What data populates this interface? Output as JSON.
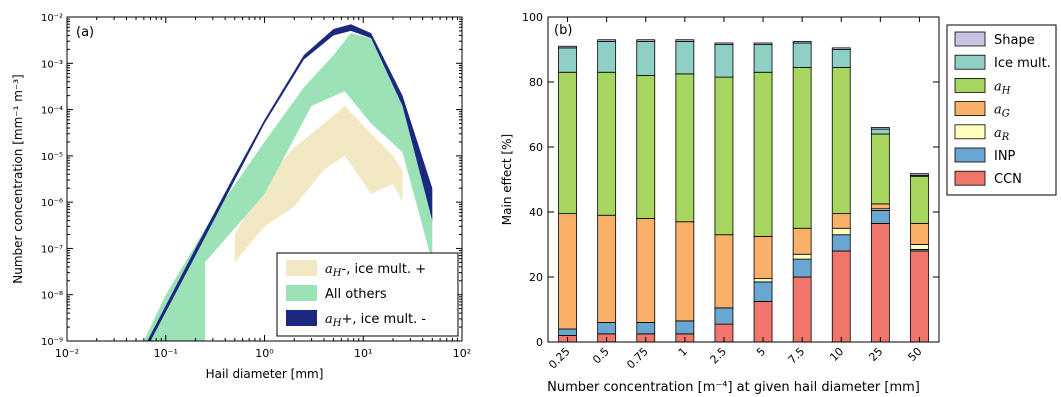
{
  "chart_data": [
    {
      "type": "area",
      "panel_label": "(a)",
      "xlabel": "Hail diameter [mm]",
      "ylabel": "Number concentration [mm⁻¹ m⁻³]",
      "xscale": "log",
      "yscale": "log",
      "xlim": [
        0.01,
        100
      ],
      "ylim": [
        1e-09,
        0.01
      ],
      "xticks": [
        0.01,
        0.1,
        1,
        10,
        100
      ],
      "xtick_labels": [
        "10⁻²",
        "10⁻¹",
        "10⁰",
        "10¹",
        "10²"
      ],
      "yticks": [
        1e-09,
        1e-08,
        1e-07,
        1e-06,
        1e-05,
        0.0001,
        0.001,
        0.01
      ],
      "ytick_labels": [
        "10⁻⁹",
        "10⁻⁸",
        "10⁻⁷",
        "10⁻⁶",
        "10⁻⁵",
        "10⁻⁴",
        "10⁻³",
        "10⁻²"
      ],
      "grid": false,
      "legend_position": "bottom-right",
      "series": [
        {
          "name": "a_H -, ice mult. +",
          "legend_label": "-, ice mult. +",
          "legend_symbol": "a",
          "legend_subscript": "H",
          "color": "#f2e8c4",
          "x_upper": [
            0.5,
            1,
            2,
            4,
            6.5,
            12,
            20,
            25
          ],
          "y_upper": [
            2e-07,
            3e-06,
            1.5e-05,
            5e-05,
            0.00012,
            3e-05,
            1e-05,
            5e-06
          ],
          "x_lower": [
            25,
            20,
            12,
            6.5,
            4,
            2,
            1,
            0.5
          ],
          "y_lower": [
            1e-06,
            2.5e-06,
            1.5e-06,
            1e-05,
            5e-06,
            8e-07,
            3e-07,
            5e-08
          ]
        },
        {
          "name": "All others",
          "legend_label": "All others",
          "color": "#9be3b6",
          "x_upper": [
            0.06,
            0.1,
            0.3,
            1,
            2.5,
            5,
            7.5,
            12,
            25,
            50
          ],
          "y_upper": [
            1e-09,
            1e-08,
            5e-07,
            2e-05,
            0.0003,
            0.0015,
            0.0045,
            0.0035,
            0.00015,
            6e-07
          ],
          "x_lower": [
            50,
            25,
            12,
            6.5,
            3,
            1,
            0.25,
            0.25,
            0.08
          ],
          "y_lower": [
            5e-08,
            1.2e-05,
            5e-05,
            0.00025,
            0.00012,
            1.5e-06,
            5e-08,
            1e-09,
            1e-09
          ]
        },
        {
          "name": "a_H +, ice mult. -",
          "legend_label": "+, ice mult. -",
          "legend_symbol": "a",
          "legend_subscript": "H",
          "color": "#1c2880",
          "x_upper": [
            0.065,
            0.2,
            0.5,
            1,
            2.5,
            5,
            7.5,
            12,
            25,
            50
          ],
          "y_upper": [
            1e-09,
            1e-07,
            4e-06,
            6e-05,
            0.0015,
            0.0055,
            0.007,
            0.0045,
            0.0002,
            2e-06
          ],
          "x_lower": [
            50,
            25,
            12,
            7.5,
            5,
            2.5,
            1,
            0.5,
            0.2,
            0.07
          ],
          "y_lower": [
            4e-07,
            0.00012,
            0.0035,
            0.005,
            0.004,
            0.0012,
            5e-05,
            3e-06,
            7e-08,
            1e-09
          ]
        }
      ]
    },
    {
      "type": "bar",
      "stacked": true,
      "panel_label": "(b)",
      "xlabel": "Number concentration [m⁻⁴] at given hail diameter [mm]",
      "ylabel": "Main effect [%]",
      "ylim": [
        0,
        100
      ],
      "yticks": [
        0,
        20,
        40,
        60,
        80,
        100
      ],
      "grid": false,
      "legend_position": "outside-right",
      "categories": [
        "0.25",
        "0.5",
        "0.75",
        "1",
        "2.5",
        "5",
        "7.5",
        "10",
        "25",
        "50"
      ],
      "series": [
        {
          "name": "CCN",
          "color": "#f0766c",
          "values": [
            2,
            2.5,
            2.5,
            2.5,
            5.5,
            12.5,
            20,
            28,
            36.5,
            28
          ]
        },
        {
          "name": "INP",
          "color": "#6aa6d2",
          "values": [
            2,
            3.5,
            3.5,
            4,
            5,
            6,
            5.5,
            5,
            4,
            0.5
          ]
        },
        {
          "name": "a_R",
          "legend_symbol": "a",
          "legend_subscript": "R",
          "color": "#ffffbe",
          "values": [
            0,
            0,
            0,
            0,
            0,
            1,
            1.5,
            2,
            0.5,
            1.5
          ]
        },
        {
          "name": "a_G",
          "legend_symbol": "a",
          "legend_subscript": "G",
          "color": "#fbb06a",
          "values": [
            35.5,
            33,
            32,
            30.5,
            22.5,
            13,
            8,
            4.5,
            1.5,
            6.5
          ]
        },
        {
          "name": "a_H",
          "legend_symbol": "a",
          "legend_subscript": "H",
          "color": "#a6d660",
          "values": [
            43.5,
            44,
            44,
            45.5,
            48.5,
            50.5,
            49.5,
            45,
            21.5,
            14.5
          ]
        },
        {
          "name": "Ice mult.",
          "color": "#8ecfc6",
          "values": [
            7.5,
            9.5,
            10.5,
            10,
            10,
            8.5,
            7.5,
            5.5,
            1.5,
            0.3
          ]
        },
        {
          "name": "Shape",
          "color": "#c6c3e3",
          "values": [
            0.5,
            0.5,
            0.5,
            0.5,
            0.5,
            0.5,
            0.5,
            0.5,
            0.5,
            0.5
          ]
        }
      ]
    }
  ]
}
